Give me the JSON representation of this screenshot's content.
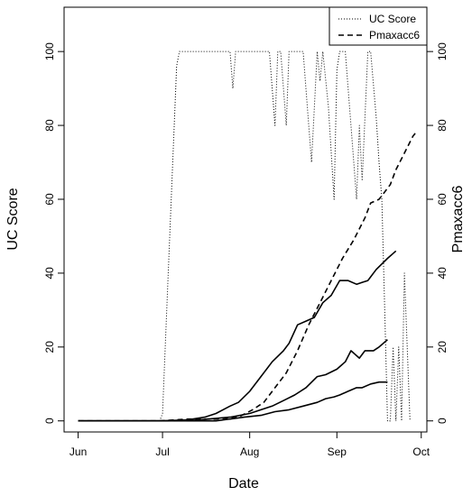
{
  "chart_data": {
    "type": "line",
    "xlabel": "Date",
    "ylabel": "UC Score",
    "ylabel_right": "Pmaxacc6",
    "xlim": [
      "2013-05-27",
      "2013-10-03"
    ],
    "ylim": [
      -3,
      112
    ],
    "yticks": [
      0,
      20,
      40,
      60,
      80,
      100
    ],
    "xticks": [
      {
        "date": "2013-06-01",
        "label": "Jun"
      },
      {
        "date": "2013-07-01",
        "label": "Jul"
      },
      {
        "date": "2013-08-01",
        "label": "Aug"
      },
      {
        "date": "2013-09-01",
        "label": "Sep"
      },
      {
        "date": "2013-10-01",
        "label": "Oct"
      }
    ],
    "grid": false,
    "legend": {
      "position": "top-right",
      "entries": [
        {
          "label": "UC Score",
          "style": "dotted"
        },
        {
          "label": "Pmaxacc6",
          "style": "dashed"
        }
      ]
    },
    "series": [
      {
        "name": "UC Score",
        "style": "dotted",
        "points": [
          [
            "2013-06-01",
            0
          ],
          [
            "2013-06-30",
            0
          ],
          [
            "2013-07-01",
            2
          ],
          [
            "2013-07-06",
            96
          ],
          [
            "2013-07-07",
            100
          ],
          [
            "2013-07-10",
            100
          ],
          [
            "2013-07-25",
            100
          ],
          [
            "2013-07-26",
            90
          ],
          [
            "2013-07-27",
            100
          ],
          [
            "2013-08-08",
            100
          ],
          [
            "2013-08-10",
            80
          ],
          [
            "2013-08-11",
            100
          ],
          [
            "2013-08-12",
            100
          ],
          [
            "2013-08-14",
            80
          ],
          [
            "2013-08-15",
            100
          ],
          [
            "2013-08-17",
            100
          ],
          [
            "2013-08-19",
            100
          ],
          [
            "2013-08-20",
            100
          ],
          [
            "2013-08-23",
            70
          ],
          [
            "2013-08-25",
            100
          ],
          [
            "2013-08-26",
            92
          ],
          [
            "2013-08-27",
            100
          ],
          [
            "2013-08-29",
            85
          ],
          [
            "2013-08-31",
            60
          ],
          [
            "2013-09-01",
            95
          ],
          [
            "2013-09-02",
            100
          ],
          [
            "2013-09-03",
            100
          ],
          [
            "2013-09-04",
            100
          ],
          [
            "2013-09-06",
            80
          ],
          [
            "2013-09-08",
            60
          ],
          [
            "2013-09-09",
            80
          ],
          [
            "2013-09-10",
            65
          ],
          [
            "2013-09-12",
            100
          ],
          [
            "2013-09-13",
            100
          ],
          [
            "2013-09-15",
            82
          ],
          [
            "2013-09-16",
            70
          ],
          [
            "2013-09-17",
            60
          ],
          [
            "2013-09-18",
            30
          ],
          [
            "2013-09-19",
            0
          ],
          [
            "2013-09-20",
            0
          ],
          [
            "2013-09-21",
            20
          ],
          [
            "2013-09-22",
            0
          ],
          [
            "2013-09-23",
            20
          ],
          [
            "2013-09-24",
            0
          ],
          [
            "2013-09-25",
            40
          ],
          [
            "2013-09-26",
            20
          ],
          [
            "2013-09-27",
            0
          ]
        ]
      },
      {
        "name": "Pmaxacc6",
        "style": "dashed",
        "points": [
          [
            "2013-06-01",
            0
          ],
          [
            "2013-06-30",
            0
          ],
          [
            "2013-07-10",
            0.5
          ],
          [
            "2013-07-20",
            0.5
          ],
          [
            "2013-07-28",
            1
          ],
          [
            "2013-08-02",
            3
          ],
          [
            "2013-08-06",
            5
          ],
          [
            "2013-08-10",
            9
          ],
          [
            "2013-08-14",
            13
          ],
          [
            "2013-08-18",
            19
          ],
          [
            "2013-08-22",
            26
          ],
          [
            "2013-08-26",
            32
          ],
          [
            "2013-08-30",
            38
          ],
          [
            "2013-09-03",
            44
          ],
          [
            "2013-09-07",
            49
          ],
          [
            "2013-09-11",
            55
          ],
          [
            "2013-09-13",
            59
          ],
          [
            "2013-09-16",
            60
          ],
          [
            "2013-09-18",
            62
          ],
          [
            "2013-09-20",
            64
          ],
          [
            "2013-09-22",
            68
          ],
          [
            "2013-09-24",
            71
          ],
          [
            "2013-09-26",
            74
          ],
          [
            "2013-09-28",
            77
          ],
          [
            "2013-09-29",
            78
          ]
        ]
      },
      {
        "style": "solid",
        "points": [
          [
            "2013-06-01",
            0
          ],
          [
            "2013-07-01",
            0
          ],
          [
            "2013-07-10",
            0.3
          ],
          [
            "2013-07-16",
            1
          ],
          [
            "2013-07-20",
            2
          ],
          [
            "2013-07-25",
            4
          ],
          [
            "2013-07-28",
            5
          ],
          [
            "2013-08-01",
            8
          ],
          [
            "2013-08-05",
            12
          ],
          [
            "2013-08-09",
            16
          ],
          [
            "2013-08-13",
            19
          ],
          [
            "2013-08-15",
            21
          ],
          [
            "2013-08-18",
            26
          ],
          [
            "2013-08-21",
            27
          ],
          [
            "2013-08-24",
            28
          ],
          [
            "2013-08-27",
            32
          ],
          [
            "2013-08-30",
            34
          ],
          [
            "2013-09-02",
            38
          ],
          [
            "2013-09-05",
            38
          ],
          [
            "2013-09-08",
            37
          ],
          [
            "2013-09-10",
            37.5
          ],
          [
            "2013-09-12",
            38
          ],
          [
            "2013-09-15",
            41
          ],
          [
            "2013-09-19",
            44
          ],
          [
            "2013-09-22",
            46
          ]
        ]
      },
      {
        "style": "solid",
        "points": [
          [
            "2013-06-01",
            0
          ],
          [
            "2013-07-10",
            0
          ],
          [
            "2013-07-25",
            1
          ],
          [
            "2013-08-01",
            2
          ],
          [
            "2013-08-05",
            3
          ],
          [
            "2013-08-09",
            4
          ],
          [
            "2013-08-13",
            5.5
          ],
          [
            "2013-08-17",
            7
          ],
          [
            "2013-08-21",
            9
          ],
          [
            "2013-08-25",
            12
          ],
          [
            "2013-08-28",
            12.5
          ],
          [
            "2013-09-01",
            14
          ],
          [
            "2013-09-04",
            16
          ],
          [
            "2013-09-06",
            19
          ],
          [
            "2013-09-09",
            17
          ],
          [
            "2013-09-11",
            19
          ],
          [
            "2013-09-14",
            19
          ],
          [
            "2013-09-16",
            20
          ],
          [
            "2013-09-19",
            22
          ]
        ]
      },
      {
        "style": "solid",
        "points": [
          [
            "2013-06-01",
            0
          ],
          [
            "2013-07-20",
            0
          ],
          [
            "2013-07-30",
            1
          ],
          [
            "2013-08-05",
            1.5
          ],
          [
            "2013-08-10",
            2.5
          ],
          [
            "2013-08-15",
            3
          ],
          [
            "2013-08-20",
            4
          ],
          [
            "2013-08-25",
            5
          ],
          [
            "2013-08-28",
            6
          ],
          [
            "2013-08-31",
            6.5
          ],
          [
            "2013-09-02",
            7
          ],
          [
            "2013-09-05",
            8
          ],
          [
            "2013-09-08",
            9
          ],
          [
            "2013-09-10",
            9
          ],
          [
            "2013-09-13",
            10
          ],
          [
            "2013-09-16",
            10.5
          ],
          [
            "2013-09-19",
            10.5
          ]
        ]
      }
    ]
  }
}
